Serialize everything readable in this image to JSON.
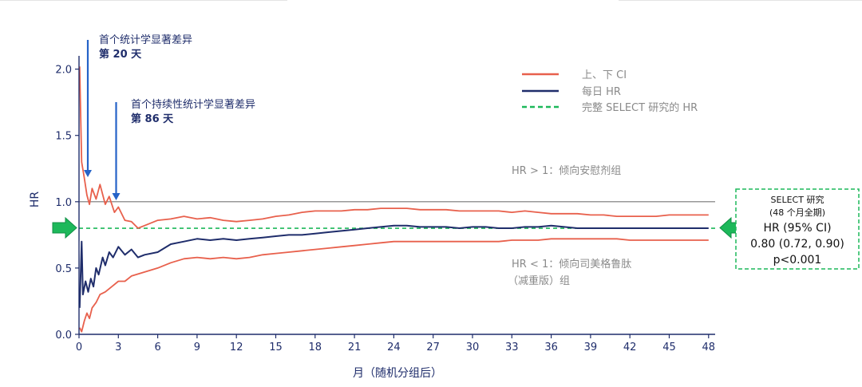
{
  "chart_data": {
    "type": "line",
    "xlabel": "月（随机分组后）",
    "ylabel": "HR",
    "xlim": [
      0,
      48.5
    ],
    "ylim": [
      0,
      2.1
    ],
    "x_ticks": [
      0,
      3,
      6,
      9,
      12,
      15,
      18,
      21,
      24,
      27,
      30,
      33,
      36,
      39,
      42,
      45,
      48
    ],
    "y_ticks": [
      0.0,
      0.5,
      1.0,
      1.5,
      2.0
    ],
    "y_tick_labels": [
      "0.0",
      "0.5",
      "1.0",
      "1.5",
      "2.0"
    ],
    "reference_line": 1.0,
    "overall_hr": 0.8,
    "legend_position": "top-right",
    "series": [
      {
        "name": "上、下 CI",
        "role": "upper",
        "color": "#e8604c",
        "x": [
          0.05,
          0.2,
          0.4,
          0.6,
          0.8,
          1.0,
          1.3,
          1.6,
          2.0,
          2.3,
          2.7,
          3.0,
          3.5,
          4.0,
          4.5,
          5.0,
          6,
          7,
          8,
          9,
          10,
          11,
          12,
          13,
          14,
          15,
          16,
          17,
          18,
          19,
          20,
          21,
          22,
          23,
          24,
          25,
          26,
          27,
          28,
          29,
          30,
          31,
          32,
          33,
          34,
          35,
          36,
          37,
          38,
          39,
          40,
          41,
          42,
          43,
          44,
          45,
          46,
          47,
          48
        ],
        "y": [
          2.02,
          1.3,
          1.18,
          1.05,
          0.98,
          1.1,
          1.02,
          1.13,
          0.98,
          1.04,
          0.92,
          0.96,
          0.86,
          0.85,
          0.8,
          0.82,
          0.86,
          0.87,
          0.89,
          0.87,
          0.88,
          0.86,
          0.85,
          0.86,
          0.87,
          0.89,
          0.9,
          0.92,
          0.93,
          0.93,
          0.93,
          0.94,
          0.94,
          0.95,
          0.95,
          0.95,
          0.94,
          0.94,
          0.94,
          0.93,
          0.93,
          0.93,
          0.93,
          0.92,
          0.93,
          0.92,
          0.91,
          0.91,
          0.91,
          0.9,
          0.9,
          0.89,
          0.89,
          0.89,
          0.89,
          0.9,
          0.9,
          0.9,
          0.9
        ]
      },
      {
        "name": "上、下 CI",
        "role": "lower",
        "color": "#e8604c",
        "x": [
          0.05,
          0.2,
          0.4,
          0.6,
          0.8,
          1.0,
          1.3,
          1.6,
          2.0,
          2.5,
          3.0,
          3.5,
          4.0,
          5.0,
          6,
          7,
          8,
          9,
          10,
          11,
          12,
          13,
          14,
          15,
          16,
          17,
          18,
          19,
          20,
          21,
          22,
          23,
          24,
          25,
          26,
          27,
          28,
          29,
          30,
          31,
          32,
          33,
          34,
          35,
          36,
          37,
          38,
          39,
          40,
          41,
          42,
          43,
          44,
          45,
          46,
          47,
          48
        ],
        "y": [
          0.05,
          0.02,
          0.1,
          0.16,
          0.12,
          0.2,
          0.24,
          0.3,
          0.32,
          0.36,
          0.4,
          0.4,
          0.44,
          0.47,
          0.5,
          0.54,
          0.57,
          0.58,
          0.57,
          0.58,
          0.57,
          0.58,
          0.6,
          0.61,
          0.62,
          0.63,
          0.64,
          0.65,
          0.66,
          0.67,
          0.68,
          0.69,
          0.7,
          0.7,
          0.7,
          0.7,
          0.7,
          0.7,
          0.7,
          0.7,
          0.7,
          0.71,
          0.71,
          0.71,
          0.72,
          0.72,
          0.72,
          0.72,
          0.72,
          0.72,
          0.71,
          0.71,
          0.71,
          0.71,
          0.71,
          0.71,
          0.71
        ]
      },
      {
        "name": "每日 HR",
        "role": "main",
        "color": "#1f2d6b",
        "x": [
          0.05,
          0.2,
          0.3,
          0.5,
          0.7,
          0.9,
          1.1,
          1.3,
          1.5,
          1.8,
          2.0,
          2.3,
          2.6,
          3.0,
          3.5,
          4.0,
          4.5,
          5.0,
          6,
          7,
          8,
          9,
          10,
          11,
          12,
          13,
          14,
          15,
          16,
          17,
          18,
          19,
          20,
          21,
          22,
          23,
          24,
          25,
          26,
          27,
          28,
          29,
          30,
          31,
          32,
          33,
          34,
          35,
          36,
          37,
          38,
          39,
          40,
          41,
          42,
          43,
          44,
          45,
          46,
          47,
          48
        ],
        "y": [
          0.2,
          0.7,
          0.3,
          0.4,
          0.32,
          0.42,
          0.36,
          0.5,
          0.45,
          0.58,
          0.52,
          0.62,
          0.58,
          0.66,
          0.6,
          0.64,
          0.58,
          0.6,
          0.62,
          0.68,
          0.7,
          0.72,
          0.71,
          0.72,
          0.71,
          0.72,
          0.73,
          0.74,
          0.75,
          0.75,
          0.76,
          0.77,
          0.78,
          0.79,
          0.8,
          0.81,
          0.82,
          0.82,
          0.81,
          0.81,
          0.81,
          0.8,
          0.81,
          0.81,
          0.8,
          0.8,
          0.81,
          0.81,
          0.82,
          0.81,
          0.8,
          0.8,
          0.8,
          0.8,
          0.8,
          0.8,
          0.8,
          0.8,
          0.8,
          0.8,
          0.8
        ]
      }
    ],
    "legend": [
      {
        "label": "上、下 CI",
        "color": "#e8604c",
        "style": "solid"
      },
      {
        "label": "每日 HR",
        "color": "#1f2d6b",
        "style": "solid"
      },
      {
        "label": "完整 SELECT 研究的 HR",
        "color": "#1db85a",
        "style": "dashed"
      }
    ],
    "annotations": {
      "first_sig_line1": "首个统计学显著差异",
      "first_sig_line2": "第 20 天",
      "first_sig_x": 0.67,
      "sustained_sig_line1": "首个持续性统计学显著差异",
      "sustained_sig_line2": "第 86 天",
      "sustained_sig_x": 2.83,
      "above_label": "HR > 1：倾向安慰剂组",
      "below_label_line1": "HR < 1：倾向司美格鲁肽",
      "below_label_line2": "（减重版）组"
    },
    "result_box": {
      "title": "SELECT 研究",
      "subtitle": "(48 个月全期)",
      "hr_label": "HR (95% CI)",
      "hr_value": "0.80 (0.72, 0.90)",
      "p_value": "p<0.001"
    },
    "colors": {
      "axis": "#1f2d6b",
      "ci": "#e8604c",
      "hr": "#1f2d6b",
      "overall": "#1db85a",
      "arrow_blue": "#2563c8",
      "reference": "#777777"
    }
  }
}
